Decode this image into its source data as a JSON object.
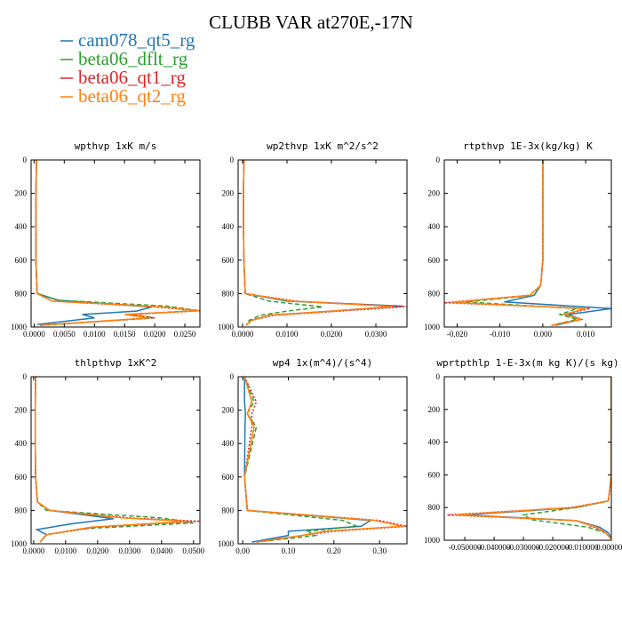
{
  "figure": {
    "title": "CLUBB VAR at270E,-17N",
    "legend": [
      {
        "label": "cam078_qt5_rg",
        "color": "#1f77b4"
      },
      {
        "label": "beta06_dflt_rg",
        "color": "#2ca02c"
      },
      {
        "label": "beta06_qt1_rg",
        "color": "#d62728"
      },
      {
        "label": "beta06_qt2_rg",
        "color": "#ff7f0e"
      }
    ]
  },
  "chart_data": [
    {
      "type": "line",
      "title": "wpthvp   1xK m/s",
      "xlim": [
        -0.0005,
        0.0275
      ],
      "ylim": [
        0,
        1000
      ],
      "y_inverted": true,
      "xticks": [
        "0.0000",
        "0.0050",
        "0.0100",
        "0.0150",
        "0.0200",
        "0.0250"
      ],
      "xtick_values": [
        0,
        0.005,
        0.01,
        0.015,
        0.02,
        0.025
      ],
      "yticks": [
        "0",
        "200",
        "400",
        "600",
        "800",
        "1000"
      ],
      "ytick_values": [
        0,
        200,
        400,
        600,
        800,
        1000
      ],
      "series": [
        {
          "color": "#1f77b4",
          "dash": "solid",
          "x": [
            0.0004,
            0.0003,
            0.0003,
            0.0003,
            0.0005,
            0.004,
            0.0195,
            0.017,
            0.008,
            0.01,
            0.0005
          ],
          "y": [
            0,
            200,
            400,
            600,
            800,
            840,
            880,
            905,
            925,
            945,
            985
          ]
        },
        {
          "color": "#2ca02c",
          "dash": "dash",
          "x": [
            0.0004,
            0.0003,
            0.0003,
            0.0003,
            0.0005,
            0.004,
            0.022,
            0.027,
            0.016,
            0.02,
            0.001
          ],
          "y": [
            0,
            200,
            400,
            600,
            800,
            840,
            875,
            900,
            925,
            945,
            990
          ]
        },
        {
          "color": "#d62728",
          "dash": "dot",
          "x": [
            0.0004,
            0.0003,
            0.0003,
            0.0003,
            0.0005,
            0.003,
            0.02,
            0.0275,
            0.016,
            0.02,
            0.001
          ],
          "y": [
            0,
            200,
            400,
            600,
            800,
            845,
            880,
            903,
            925,
            945,
            990
          ]
        },
        {
          "color": "#ff7f0e",
          "dash": "solid",
          "x": [
            0.0004,
            0.0003,
            0.0003,
            0.0003,
            0.0005,
            0.003,
            0.021,
            0.0275,
            0.015,
            0.019,
            0.001
          ],
          "y": [
            0,
            200,
            400,
            600,
            800,
            845,
            878,
            902,
            925,
            945,
            990
          ]
        }
      ]
    },
    {
      "type": "line",
      "title": "wp2thvp   1xK m^2/s^2",
      "xlim": [
        -0.001,
        0.037
      ],
      "ylim": [
        0,
        1000
      ],
      "y_inverted": true,
      "xticks": [
        "0.0000",
        "0.0100",
        "0.0200",
        "0.0300"
      ],
      "xtick_values": [
        0,
        0.01,
        0.02,
        0.03
      ],
      "yticks": [
        "0",
        "200",
        "400",
        "600",
        "800",
        "1000"
      ],
      "ytick_values": [
        0,
        200,
        400,
        600,
        800,
        1000
      ],
      "series": [
        {
          "color": "#1f77b4",
          "dash": "solid",
          "x": [
            0.0003,
            0.0002,
            0.0002,
            0.0003,
            0.0006,
            0.01,
            0.036,
            0.02,
            0.006,
            0.002,
            0.0008
          ],
          "y": [
            0,
            200,
            400,
            600,
            800,
            845,
            875,
            905,
            930,
            960,
            990
          ]
        },
        {
          "color": "#2ca02c",
          "dash": "dash",
          "x": [
            0.0003,
            0.0002,
            0.0002,
            0.0003,
            0.0006,
            0.006,
            0.018,
            0.01,
            0.004,
            0.0015,
            0.0008
          ],
          "y": [
            0,
            200,
            400,
            600,
            800,
            845,
            880,
            905,
            930,
            960,
            990
          ]
        },
        {
          "color": "#d62728",
          "dash": "dot",
          "x": [
            0.0003,
            0.0002,
            0.0002,
            0.0003,
            0.0006,
            0.012,
            0.037,
            0.022,
            0.007,
            0.002,
            0.0008
          ],
          "y": [
            0,
            200,
            400,
            600,
            800,
            845,
            878,
            905,
            930,
            960,
            990
          ]
        },
        {
          "color": "#ff7f0e",
          "dash": "solid",
          "x": [
            0.0003,
            0.0002,
            0.0002,
            0.0003,
            0.0006,
            0.011,
            0.034,
            0.02,
            0.006,
            0.002,
            0.0008
          ],
          "y": [
            0,
            200,
            400,
            600,
            800,
            845,
            877,
            905,
            930,
            960,
            990
          ]
        }
      ]
    },
    {
      "type": "line",
      "title": "rtpthvp   1E-3x(kg/kg) K",
      "xlim": [
        -0.023,
        0.016
      ],
      "ylim": [
        0,
        1000
      ],
      "y_inverted": true,
      "xticks": [
        "-0.020",
        "-0.010",
        "0.000",
        "0.010"
      ],
      "xtick_values": [
        -0.02,
        -0.01,
        0,
        0.01
      ],
      "yticks": [
        "0",
        "200",
        "400",
        "600",
        "800",
        "1000"
      ],
      "ytick_values": [
        0,
        200,
        400,
        600,
        800,
        1000
      ],
      "series": [
        {
          "color": "#1f77b4",
          "dash": "solid",
          "x": [
            0,
            0,
            0,
            0,
            -0.0005,
            -0.002,
            -0.009,
            0.016,
            0.006,
            0.009,
            0.003
          ],
          "y": [
            0,
            200,
            400,
            600,
            750,
            810,
            850,
            890,
            925,
            955,
            990
          ]
        },
        {
          "color": "#2ca02c",
          "dash": "dash",
          "x": [
            0,
            0,
            0,
            0,
            -0.0005,
            -0.002,
            -0.018,
            0.008,
            0.004,
            0.008,
            0.002
          ],
          "y": [
            0,
            200,
            400,
            600,
            750,
            810,
            850,
            890,
            925,
            955,
            990
          ]
        },
        {
          "color": "#d62728",
          "dash": "dot",
          "x": [
            0,
            0,
            0,
            0,
            -0.0005,
            -0.003,
            -0.023,
            0.011,
            0.005,
            0.009,
            0.002
          ],
          "y": [
            0,
            200,
            400,
            600,
            750,
            810,
            855,
            890,
            925,
            955,
            990
          ]
        },
        {
          "color": "#ff7f0e",
          "dash": "solid",
          "x": [
            0,
            0,
            0,
            0,
            -0.0005,
            -0.003,
            -0.021,
            0.01,
            0.005,
            0.009,
            0.002
          ],
          "y": [
            0,
            200,
            400,
            600,
            750,
            810,
            853,
            890,
            925,
            955,
            990
          ]
        }
      ]
    },
    {
      "type": "line",
      "title": "thlpthvp   1xK^2",
      "xlim": [
        -0.0008,
        0.052
      ],
      "ylim": [
        0,
        1000
      ],
      "y_inverted": true,
      "xticks": [
        "0.0000",
        "0.0100",
        "0.0200",
        "0.0300",
        "0.0400",
        "0.0500"
      ],
      "xtick_values": [
        0,
        0.01,
        0.02,
        0.03,
        0.04,
        0.05
      ],
      "yticks": [
        "0",
        "200",
        "400",
        "600",
        "800",
        "1000"
      ],
      "ytick_values": [
        0,
        200,
        400,
        600,
        800,
        1000
      ],
      "series": [
        {
          "color": "#1f77b4",
          "dash": "solid",
          "x": [
            0.0006,
            0.0005,
            0.0005,
            0.0006,
            0.0012,
            0.005,
            0.025,
            0.012,
            0.001,
            0.004,
            0.002
          ],
          "y": [
            0,
            200,
            400,
            600,
            750,
            800,
            850,
            880,
            915,
            945,
            990
          ]
        },
        {
          "color": "#2ca02c",
          "dash": "dash",
          "x": [
            0.0006,
            0.0005,
            0.0005,
            0.0006,
            0.0012,
            0.004,
            0.04,
            0.05,
            0.015,
            0.004,
            0.002
          ],
          "y": [
            0,
            200,
            400,
            600,
            750,
            800,
            845,
            875,
            910,
            945,
            990
          ]
        },
        {
          "color": "#d62728",
          "dash": "dot",
          "x": [
            0.0006,
            0.0005,
            0.0005,
            0.0006,
            0.0012,
            0.005,
            0.03,
            0.052,
            0.02,
            0.004,
            0.002
          ],
          "y": [
            0,
            200,
            400,
            600,
            750,
            800,
            845,
            865,
            900,
            945,
            990
          ]
        },
        {
          "color": "#ff7f0e",
          "dash": "solid",
          "x": [
            0.0006,
            0.0005,
            0.0005,
            0.0006,
            0.0012,
            0.005,
            0.028,
            0.048,
            0.018,
            0.004,
            0.002
          ],
          "y": [
            0,
            200,
            400,
            600,
            750,
            800,
            845,
            866,
            900,
            945,
            990
          ]
        }
      ]
    },
    {
      "type": "line",
      "title": "wp4   1x(m^4)/(s^4)",
      "xlim": [
        -0.01,
        0.36
      ],
      "ylim": [
        0,
        1000
      ],
      "y_inverted": true,
      "xticks": [
        "0.00",
        "0.10",
        "0.20",
        "0.30"
      ],
      "xtick_values": [
        0,
        0.1,
        0.2,
        0.3
      ],
      "yticks": [
        "0",
        "200",
        "400",
        "600",
        "800",
        "1000"
      ],
      "ytick_values": [
        0,
        200,
        400,
        600,
        800,
        1000
      ],
      "series": [
        {
          "color": "#1f77b4",
          "dash": "solid",
          "x": [
            0.004,
            0.004,
            0.006,
            0.005,
            0.004,
            0.01,
            0.28,
            0.26,
            0.1,
            0.1,
            0.02
          ],
          "y": [
            0,
            150,
            220,
            300,
            600,
            800,
            860,
            895,
            925,
            950,
            990
          ]
        },
        {
          "color": "#2ca02c",
          "dash": "dash",
          "x": [
            0.004,
            0.025,
            0.01,
            0.03,
            0.004,
            0.01,
            0.22,
            0.25,
            0.14,
            0.16,
            0.03
          ],
          "y": [
            0,
            150,
            220,
            300,
            600,
            800,
            860,
            895,
            925,
            950,
            990
          ]
        },
        {
          "color": "#d62728",
          "dash": "dot",
          "x": [
            0.004,
            0.03,
            0.02,
            0.02,
            0.004,
            0.01,
            0.3,
            0.36,
            0.2,
            0.13,
            0.03
          ],
          "y": [
            0,
            150,
            220,
            300,
            600,
            800,
            860,
            895,
            925,
            950,
            990
          ]
        },
        {
          "color": "#ff7f0e",
          "dash": "solid",
          "x": [
            0.004,
            0.02,
            0.01,
            0.025,
            0.004,
            0.01,
            0.29,
            0.35,
            0.18,
            0.13,
            0.03
          ],
          "y": [
            0,
            150,
            220,
            300,
            600,
            800,
            860,
            895,
            925,
            950,
            990
          ]
        }
      ]
    },
    {
      "type": "line",
      "title": "wprtpthlp   1-E-3x(m kg K)/(s kg)",
      "xlim": [
        -0.057,
        0.0
      ],
      "ylim": [
        0,
        1000
      ],
      "y_inverted": true,
      "xticks": [
        "-0.050000",
        "-0.040000",
        "-0.030000",
        "-0.020000",
        "-0.010000",
        "0.000000"
      ],
      "xtick_values": [
        -0.05,
        -0.04,
        -0.03,
        -0.02,
        -0.01,
        0
      ],
      "yticks": [
        "0",
        "200",
        "400",
        "600",
        "800",
        "1000"
      ],
      "ytick_values": [
        0,
        200,
        400,
        600,
        800,
        1000
      ],
      "series": [
        {
          "color": "#1f77b4",
          "dash": "solid",
          "x": [
            0,
            0,
            0,
            0,
            -0.001,
            -0.012,
            -0.05,
            -0.012,
            -0.004,
            -0.001,
            0
          ],
          "y": [
            0,
            200,
            400,
            600,
            760,
            800,
            845,
            880,
            920,
            955,
            990
          ]
        },
        {
          "color": "#2ca02c",
          "dash": "dash",
          "x": [
            0,
            0,
            0,
            0,
            -0.001,
            -0.012,
            -0.03,
            -0.027,
            -0.008,
            -0.002,
            0
          ],
          "y": [
            0,
            200,
            400,
            600,
            760,
            800,
            845,
            875,
            920,
            955,
            990
          ]
        },
        {
          "color": "#d62728",
          "dash": "dot",
          "x": [
            0,
            0,
            0,
            0,
            -0.001,
            -0.014,
            -0.056,
            -0.012,
            -0.006,
            -0.002,
            0
          ],
          "y": [
            0,
            200,
            400,
            600,
            760,
            800,
            845,
            880,
            920,
            955,
            990
          ]
        },
        {
          "color": "#ff7f0e",
          "dash": "solid",
          "x": [
            0,
            0,
            0,
            0,
            -0.001,
            -0.013,
            -0.053,
            -0.012,
            -0.005,
            -0.002,
            0
          ],
          "y": [
            0,
            200,
            400,
            600,
            760,
            800,
            845,
            880,
            920,
            955,
            990
          ]
        }
      ]
    }
  ]
}
